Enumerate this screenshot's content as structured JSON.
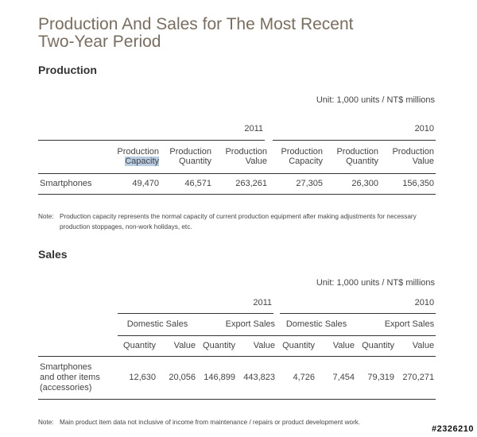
{
  "title_line1": "Production And Sales for The Most Recent",
  "title_line2": "Two-Year Period",
  "production": {
    "heading": "Production",
    "unit": "Unit: 1,000 units / NT$ millions",
    "year_2011": "2011",
    "year_2010": "2010",
    "col_pc_line1": "Production",
    "col_pc_line2": "Capacity",
    "col_pq_line1": "Production",
    "col_pq_line2": "Quantity",
    "col_pv_line1": "Production",
    "col_pv_line2": "Value",
    "row_label": "Smartphones",
    "values_2011": [
      "49,470",
      "46,571",
      "263,261"
    ],
    "values_2010": [
      "27,305",
      "26,300",
      "156,350"
    ],
    "note_label": "Note:",
    "note_text": "Production capacity represents the normal capacity of current production equipment after making adjustments for necessary production stoppages, non-work holidays, etc."
  },
  "sales": {
    "heading": "Sales",
    "unit": "Unit: 1,000 units / NT$ millions",
    "year_2011": "2011",
    "year_2010": "2010",
    "domestic": "Domestic Sales",
    "export": "Export Sales",
    "quantity": "Quantity",
    "value": "Value",
    "row_label_line1": "Smartphones",
    "row_label_line2": "and other items",
    "row_label_line3": "(accessories)",
    "values_2011": [
      "12,630",
      "20,056",
      "146,899",
      "443,823"
    ],
    "values_2010": [
      "4,726",
      "7,454",
      "79,319",
      "270,271"
    ],
    "note_label": "Note:",
    "note_text": "Main product item data not inclusive of income from maintenance / repairs or product development work."
  },
  "watermark": "#2326210"
}
